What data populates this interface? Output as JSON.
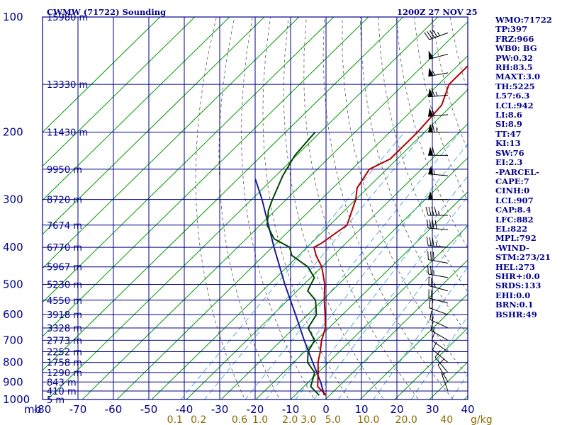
{
  "title": "CWMW (71722) Sounding",
  "datetime": "1200Z 27 NOV 25",
  "colors": {
    "grid": "#00008b",
    "isotherm": "#009900",
    "dry_adiabat": "#555555",
    "mixing_ratio": "#3399cc",
    "temperature": "#b00000",
    "dewpoint": "#004400",
    "parcel": "#1a1aa0",
    "axis_text": "#00008b",
    "mixing_text": "#8b6b00",
    "wind_barb": "#000000"
  },
  "chart_data": {
    "type": "skew-t log-p",
    "ylabel": "mb",
    "pressure_ticks": [
      "100",
      "200",
      "300",
      "400",
      "500",
      "600",
      "700",
      "800",
      "900",
      "1000"
    ],
    "temperature_ticks": [
      "-80",
      "-70",
      "-60",
      "-50",
      "-40",
      "-30",
      "-20",
      "-10",
      "0",
      "10",
      "20",
      "30",
      "40"
    ],
    "height_labels": [
      {
        "p": 100,
        "label": "15980 m"
      },
      {
        "p": 150,
        "label": "13330 m"
      },
      {
        "p": 200,
        "label": "11430 m"
      },
      {
        "p": 250,
        "label": "9950 m"
      },
      {
        "p": 300,
        "label": "8720 m"
      },
      {
        "p": 350,
        "label": "7674 m"
      },
      {
        "p": 400,
        "label": "6770 m"
      },
      {
        "p": 450,
        "label": "5967 m"
      },
      {
        "p": 500,
        "label": "5230 m"
      },
      {
        "p": 550,
        "label": "4550 m"
      },
      {
        "p": 600,
        "label": "3918 m"
      },
      {
        "p": 650,
        "label": "3328 m"
      },
      {
        "p": 700,
        "label": "2773 m"
      },
      {
        "p": 750,
        "label": "2252 m"
      },
      {
        "p": 800,
        "label": "1758 m"
      },
      {
        "p": 850,
        "label": "1290 m"
      },
      {
        "p": 900,
        "label": "843 m"
      },
      {
        "p": 950,
        "label": "410 m"
      },
      {
        "p": 1000,
        "label": "5 m"
      }
    ],
    "mixing_ratio_labels": [
      "0.1",
      "0.2",
      "0.6",
      "1.0",
      "2.0",
      "3.0",
      "5.0",
      "10.0",
      "20.0",
      "40"
    ],
    "mixing_ratio_unit": "g/kg",
    "temperature": [
      {
        "p": 975,
        "t": -1.0
      },
      {
        "p": 925,
        "t": -6.0
      },
      {
        "p": 850,
        "t": -10.0
      },
      {
        "p": 800,
        "t": -13.0
      },
      {
        "p": 750,
        "t": -15.5
      },
      {
        "p": 700,
        "t": -18.5
      },
      {
        "p": 650,
        "t": -21.0
      },
      {
        "p": 600,
        "t": -25.0
      },
      {
        "p": 550,
        "t": -29.5
      },
      {
        "p": 500,
        "t": -34.0
      },
      {
        "p": 450,
        "t": -40.0
      },
      {
        "p": 420,
        "t": -45.0
      },
      {
        "p": 400,
        "t": -48.0
      },
      {
        "p": 390,
        "t": -47.0
      },
      {
        "p": 350,
        "t": -45.0
      },
      {
        "p": 300,
        "t": -50.0
      },
      {
        "p": 280,
        "t": -53.0
      },
      {
        "p": 250,
        "t": -55.0
      },
      {
        "p": 235,
        "t": -52.0
      },
      {
        "p": 200,
        "t": -52.0
      },
      {
        "p": 170,
        "t": -53.0
      },
      {
        "p": 150,
        "t": -57.0
      },
      {
        "p": 130,
        "t": -57.0
      },
      {
        "p": 120,
        "t": -54.0
      },
      {
        "p": 100,
        "t": -55.0
      }
    ],
    "dewpoint": [
      {
        "p": 975,
        "t": -3.0
      },
      {
        "p": 925,
        "t": -8.0
      },
      {
        "p": 850,
        "t": -11.0
      },
      {
        "p": 800,
        "t": -16.0
      },
      {
        "p": 750,
        "t": -19.0
      },
      {
        "p": 700,
        "t": -20.5
      },
      {
        "p": 650,
        "t": -26.0
      },
      {
        "p": 600,
        "t": -27.5
      },
      {
        "p": 550,
        "t": -32.0
      },
      {
        "p": 520,
        "t": -37.0
      },
      {
        "p": 480,
        "t": -39.0
      },
      {
        "p": 450,
        "t": -44.0
      },
      {
        "p": 420,
        "t": -52.0
      },
      {
        "p": 400,
        "t": -55.0
      },
      {
        "p": 380,
        "t": -62.0
      },
      {
        "p": 350,
        "t": -68.0
      },
      {
        "p": 320,
        "t": -72.0
      },
      {
        "p": 300,
        "t": -74.0
      },
      {
        "p": 260,
        "t": -78.0
      },
      {
        "p": 230,
        "t": -80.5
      },
      {
        "p": 200,
        "t": -81.5
      }
    ],
    "parcel_path": [
      {
        "p": 975,
        "t": -1.5
      },
      {
        "p": 900,
        "t": -6.5
      },
      {
        "p": 800,
        "t": -14.5
      },
      {
        "p": 700,
        "t": -23.5
      },
      {
        "p": 600,
        "t": -33.5
      },
      {
        "p": 500,
        "t": -45.5
      },
      {
        "p": 400,
        "t": -59.5
      },
      {
        "p": 300,
        "t": -77.0
      },
      {
        "p": 265,
        "t": -85.0
      }
    ],
    "wind_barbs": [
      {
        "p": 110,
        "dir": 250,
        "kt": 45
      },
      {
        "p": 125,
        "dir": 255,
        "kt": 50
      },
      {
        "p": 140,
        "dir": 260,
        "kt": 55
      },
      {
        "p": 160,
        "dir": 265,
        "kt": 65
      },
      {
        "p": 180,
        "dir": 265,
        "kt": 60
      },
      {
        "p": 200,
        "dir": 270,
        "kt": 65
      },
      {
        "p": 230,
        "dir": 270,
        "kt": 60
      },
      {
        "p": 260,
        "dir": 275,
        "kt": 55
      },
      {
        "p": 300,
        "dir": 270,
        "kt": 50
      },
      {
        "p": 330,
        "dir": 270,
        "kt": 45
      },
      {
        "p": 360,
        "dir": 275,
        "kt": 40
      },
      {
        "p": 400,
        "dir": 275,
        "kt": 35
      },
      {
        "p": 440,
        "dir": 280,
        "kt": 30
      },
      {
        "p": 480,
        "dir": 280,
        "kt": 25
      },
      {
        "p": 520,
        "dir": 285,
        "kt": 25
      },
      {
        "p": 560,
        "dir": 285,
        "kt": 20
      },
      {
        "p": 600,
        "dir": 290,
        "kt": 20
      },
      {
        "p": 650,
        "dir": 295,
        "kt": 15
      },
      {
        "p": 700,
        "dir": 300,
        "kt": 15
      },
      {
        "p": 750,
        "dir": 305,
        "kt": 10
      },
      {
        "p": 800,
        "dir": 310,
        "kt": 10
      },
      {
        "p": 850,
        "dir": 320,
        "kt": 10
      },
      {
        "p": 900,
        "dir": 330,
        "kt": 10
      },
      {
        "p": 950,
        "dir": 340,
        "kt": 5
      }
    ]
  },
  "indices": [
    "WMO:71722",
    "TP:397",
    "FRZ:966",
    "WB0: BG",
    "PW:0.32",
    "RH:83.5",
    "MAXT:3.0",
    "TH:5225",
    "L57:6.3",
    "LCL:942",
    "LI:8.6",
    "SI:8.9",
    "TT:47",
    "KI:13",
    "SW:76",
    "EI:2.3",
    "-PARCEL-",
    "CAPE:7",
    "CINH:0",
    "LCL:907",
    "CAP:8.4",
    "LFC:882",
    "EL:822",
    "MPL:792",
    "-WIND-",
    "STM:273/21",
    "HEL:273",
    "SHR+:0.0",
    "SRDS:133",
    "EHI:0.0",
    "BRN:0.1",
    "BSHR:49"
  ]
}
